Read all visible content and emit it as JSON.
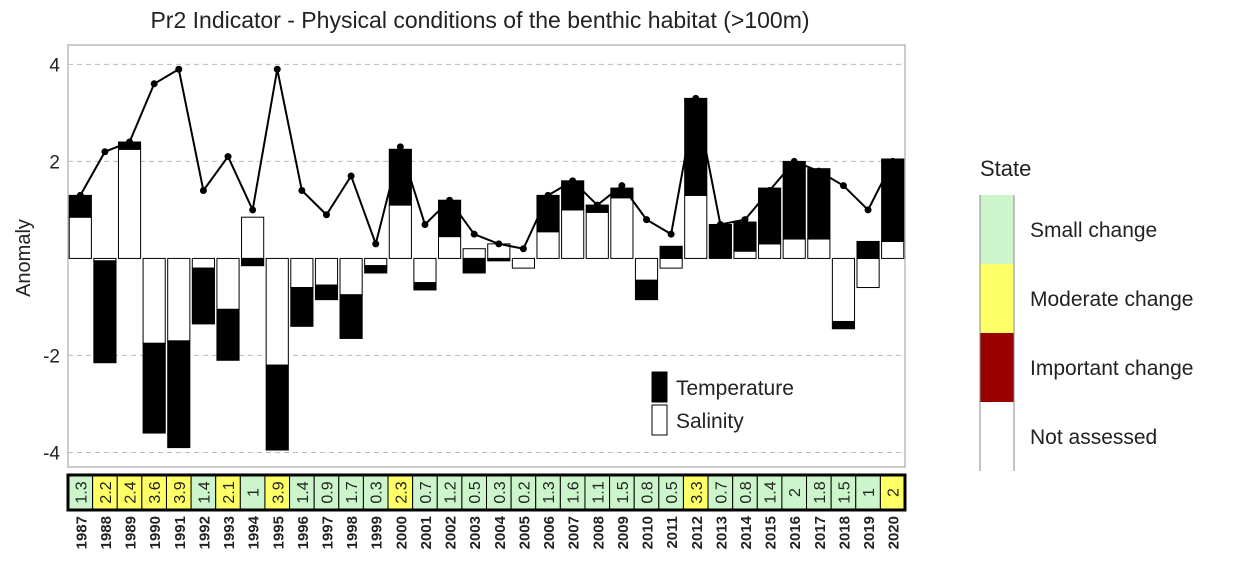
{
  "chart_data": {
    "type": "bar",
    "title": "Pr2 Indicator - Physical conditions of the benthic habitat (>100m)",
    "y_label": "Anomaly",
    "ylim": [
      -4.3,
      4.4
    ],
    "yticks": [
      4,
      2,
      -2,
      -4
    ],
    "grid": true,
    "categories": [
      "1987",
      "1988",
      "1989",
      "1990",
      "1991",
      "1992",
      "1993",
      "1994",
      "1995",
      "1996",
      "1997",
      "1998",
      "1999",
      "2000",
      "2001",
      "2002",
      "2003",
      "2004",
      "2005",
      "2006",
      "2007",
      "2008",
      "2009",
      "2010",
      "2011",
      "2012",
      "2013",
      "2014",
      "2015",
      "2016",
      "2017",
      "2018",
      "2019",
      "2020"
    ],
    "series": [
      {
        "name": "Temperature",
        "color": "#000000",
        "values": [
          0.45,
          -2.1,
          0.15,
          -1.85,
          -2.2,
          -1.15,
          -1.05,
          -0.15,
          -1.75,
          -0.8,
          -0.3,
          -0.9,
          -0.15,
          1.15,
          -0.15,
          0.75,
          -0.3,
          -0.05,
          0,
          0.75,
          0.6,
          0.15,
          0.2,
          -0.4,
          0.25,
          2.0,
          0.7,
          0.6,
          1.15,
          1.6,
          1.45,
          -0.15,
          0.35,
          1.7
        ]
      },
      {
        "name": "Salinity",
        "color": "#ffffff",
        "values": [
          0.85,
          -0.05,
          2.25,
          -1.75,
          -1.7,
          -0.2,
          -1.05,
          0.85,
          -2.2,
          -0.6,
          -0.55,
          -0.75,
          -0.15,
          1.1,
          -0.5,
          0.45,
          0.2,
          0.3,
          -0.2,
          0.55,
          1.0,
          0.95,
          1.25,
          -0.45,
          -0.2,
          1.3,
          0,
          0.15,
          0.3,
          0.4,
          0.4,
          -1.3,
          -0.6,
          0.35
        ]
      }
    ],
    "composite": {
      "color": "#000000",
      "values": [
        1.3,
        2.2,
        2.4,
        3.6,
        3.9,
        1.4,
        2.1,
        1,
        3.9,
        1.4,
        0.9,
        1.7,
        0.3,
        2.3,
        0.7,
        1.2,
        0.5,
        0.3,
        0.2,
        1.3,
        1.6,
        1.1,
        1.5,
        0.8,
        0.5,
        3.3,
        0.7,
        0.8,
        1.4,
        2,
        1.8,
        1.5,
        1,
        2
      ]
    },
    "year_state_colors": [
      "#ccf5cc",
      "#ffff66",
      "#ffff66",
      "#ffff66",
      "#ffff66",
      "#ccf5cc",
      "#ffff66",
      "#ccf5cc",
      "#ffff66",
      "#ccf5cc",
      "#ccf5cc",
      "#ccf5cc",
      "#ccf5cc",
      "#ffff66",
      "#ccf5cc",
      "#ccf5cc",
      "#ccf5cc",
      "#ccf5cc",
      "#ccf5cc",
      "#ccf5cc",
      "#ccf5cc",
      "#ccf5cc",
      "#ccf5cc",
      "#ccf5cc",
      "#ccf5cc",
      "#ffff66",
      "#ccf5cc",
      "#ccf5cc",
      "#ccf5cc",
      "#ccf5cc",
      "#ccf5cc",
      "#ccf5cc",
      "#ccf5cc",
      "#ffff66"
    ],
    "state_legend": {
      "title": "State",
      "items": [
        {
          "label": "Small change",
          "color": "#ccf5cc"
        },
        {
          "label": "Moderate change",
          "color": "#ffff66"
        },
        {
          "label": "Important change",
          "color": "#990000"
        },
        {
          "label": "Not assessed",
          "color": "#ffffff"
        }
      ]
    }
  }
}
